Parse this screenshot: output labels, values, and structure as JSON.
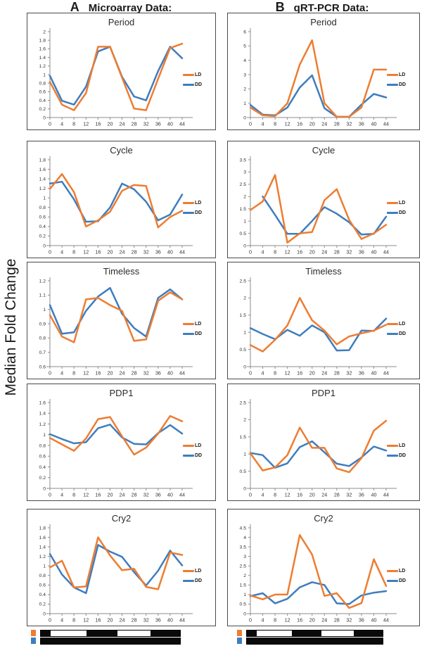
{
  "header": {
    "panel_a_letter": "A",
    "panel_a_title": "Microarray Data:",
    "panel_b_letter": "B",
    "panel_b_title": "qRT-PCR Data:"
  },
  "y_axis_label": "Median Fold Change",
  "legend": {
    "ld": "LD",
    "dd": "DD"
  },
  "colors": {
    "ld_orange": "#ED7D31",
    "dd_blue": "#3F7DBE",
    "axis_gray": "#8C8C8C",
    "tick_text": "#333333",
    "panel_border": "#4A4A4A",
    "bar_black": "#0a0a0a",
    "bar_white": "#ffffff"
  },
  "light_dark_bars": {
    "ld_marker_color": "#ED7D31",
    "dd_marker_color": "#3F7DBE",
    "ld_segment_colors": [
      "dark",
      "light",
      "dark",
      "light",
      "dark"
    ],
    "ld_segment_fractions": [
      0.07,
      0.26,
      0.22,
      0.24,
      0.21
    ],
    "dd_segment_colors": [
      "dark"
    ],
    "dd_segment_fractions": [
      1.0
    ]
  },
  "chart_data": {
    "type": "line",
    "x": [
      0,
      4,
      8,
      12,
      16,
      20,
      24,
      28,
      32,
      36,
      40,
      44
    ],
    "series_names": [
      "LD",
      "DD"
    ],
    "legend_position": "right",
    "grid": false,
    "charts": [
      {
        "column": "A",
        "title": "Period",
        "ylim": [
          0,
          2
        ],
        "ystep": 0.2,
        "ld": [
          0.83,
          0.3,
          0.17,
          0.57,
          1.65,
          1.65,
          0.93,
          0.21,
          0.17,
          0.9,
          1.62,
          1.72
        ],
        "dd": [
          0.97,
          0.39,
          0.3,
          0.72,
          1.54,
          1.65,
          0.95,
          0.49,
          0.4,
          1.08,
          1.65,
          1.38
        ]
      },
      {
        "column": "B",
        "title": "Period",
        "ylim": [
          0,
          6
        ],
        "ystep": 1,
        "ld": [
          0.7,
          0.15,
          0.1,
          1.0,
          3.7,
          5.4,
          1.0,
          0.05,
          0.05,
          0.7,
          3.35,
          3.35
        ],
        "dd": [
          0.88,
          0.2,
          0.15,
          0.7,
          2.1,
          2.95,
          0.65,
          0.05,
          0.05,
          0.9,
          1.65,
          1.4
        ]
      },
      {
        "column": "A",
        "title": "Cycle",
        "ylim": [
          0,
          1.8
        ],
        "ystep": 0.2,
        "ld": [
          1.19,
          1.5,
          1.12,
          0.4,
          0.53,
          0.71,
          1.15,
          1.27,
          1.25,
          0.38,
          0.6,
          0.73
        ],
        "dd": [
          1.3,
          1.34,
          0.97,
          0.5,
          0.51,
          0.8,
          1.3,
          1.18,
          0.92,
          0.53,
          0.65,
          1.07
        ]
      },
      {
        "column": "B",
        "title": "Cycle",
        "ylim": [
          0,
          3.5
        ],
        "ystep": 0.5,
        "ld": [
          1.45,
          1.8,
          2.88,
          0.12,
          0.5,
          0.55,
          1.85,
          2.3,
          1.05,
          0.27,
          0.5,
          0.85
        ],
        "dd": [
          null,
          2.0,
          1.25,
          0.48,
          0.48,
          1.0,
          1.57,
          1.3,
          0.95,
          0.45,
          0.48,
          1.18
        ]
      },
      {
        "column": "A",
        "title": "Timeless",
        "ylim": [
          0.6,
          1.2
        ],
        "ystep": 0.1,
        "ld": [
          0.96,
          0.81,
          0.77,
          1.07,
          1.08,
          1.03,
          0.99,
          0.78,
          0.79,
          1.06,
          1.12,
          1.07
        ],
        "dd": [
          1.03,
          0.83,
          0.84,
          0.99,
          1.09,
          1.15,
          0.97,
          0.87,
          0.81,
          1.08,
          1.14,
          1.07
        ]
      },
      {
        "column": "B",
        "title": "Timeless",
        "ylim": [
          0,
          2.5
        ],
        "ystep": 0.5,
        "ld": [
          0.63,
          0.44,
          0.78,
          1.2,
          2.0,
          1.35,
          1.05,
          0.65,
          0.88,
          0.97,
          1.05,
          1.22
        ],
        "dd": [
          1.12,
          0.95,
          0.8,
          1.07,
          0.9,
          1.2,
          1.0,
          0.47,
          0.48,
          1.05,
          1.04,
          1.4
        ]
      },
      {
        "column": "A",
        "title": "PDP1",
        "ylim": [
          0,
          1.6
        ],
        "ystep": 0.2,
        "ld": [
          0.94,
          0.82,
          0.7,
          0.93,
          1.29,
          1.33,
          0.97,
          0.63,
          0.76,
          1.02,
          1.35,
          1.25
        ],
        "dd": [
          1.01,
          0.92,
          0.84,
          0.86,
          1.12,
          1.19,
          0.95,
          0.83,
          0.82,
          1.03,
          1.18,
          1.02
        ]
      },
      {
        "column": "B",
        "title": "PDP1",
        "ylim": [
          0,
          2.5
        ],
        "ystep": 0.5,
        "ld": [
          1.02,
          0.52,
          0.61,
          0.97,
          1.77,
          1.18,
          1.18,
          0.58,
          0.47,
          0.88,
          1.68,
          1.97
        ],
        "dd": [
          1.03,
          0.97,
          0.6,
          0.73,
          1.2,
          1.37,
          1.05,
          0.72,
          0.65,
          0.9,
          1.22,
          1.1
        ]
      },
      {
        "column": "A",
        "title": "Cry2",
        "ylim": [
          0,
          1.8
        ],
        "ystep": 0.2,
        "ld": [
          0.97,
          1.11,
          0.55,
          0.57,
          1.6,
          1.22,
          0.91,
          0.94,
          0.56,
          0.51,
          1.28,
          1.23
        ],
        "dd": [
          1.25,
          0.82,
          0.55,
          0.43,
          1.44,
          1.3,
          1.19,
          0.87,
          0.59,
          0.9,
          1.32,
          1.01
        ]
      },
      {
        "column": "B",
        "title": "Cry2",
        "ylim": [
          0,
          4.5
        ],
        "ystep": 0.5,
        "ld": [
          0.95,
          0.75,
          1.0,
          1.0,
          4.12,
          3.1,
          0.93,
          1.07,
          0.3,
          0.55,
          2.85,
          1.45
        ],
        "dd": [
          0.92,
          1.07,
          0.54,
          0.78,
          1.38,
          1.65,
          1.5,
          0.54,
          0.5,
          0.95,
          1.1,
          1.18
        ]
      }
    ]
  }
}
